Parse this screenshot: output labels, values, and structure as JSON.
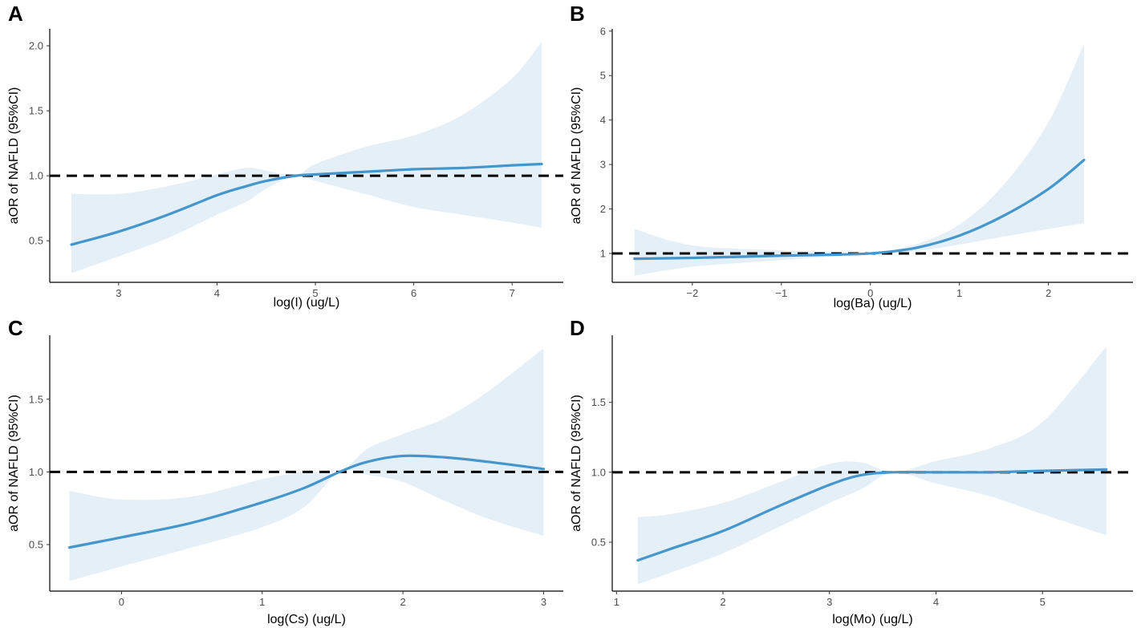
{
  "chart_data": [
    {
      "panel": "A",
      "type": "line",
      "xlabel": "log(I) (ug/L)",
      "ylabel": "aOR of NAFLD (95%CI)",
      "xlim": [
        2.3,
        7.52
      ],
      "ylim": [
        0.18,
        2.13
      ],
      "xticks": [
        3,
        4,
        5,
        6,
        7
      ],
      "xtick_labels": [
        "3",
        "4",
        "5",
        "6",
        "7"
      ],
      "yticks": [
        0.5,
        1.0,
        1.5,
        2.0
      ],
      "ytick_labels": [
        "0.5",
        "1.0",
        "1.5",
        "2.0"
      ],
      "reference_line": 1.0,
      "x": [
        2.52,
        3.0,
        3.5,
        4.0,
        4.3,
        4.5,
        4.8,
        5.0,
        5.5,
        6.0,
        6.5,
        7.0,
        7.3
      ],
      "y": [
        0.47,
        0.57,
        0.7,
        0.85,
        0.92,
        0.96,
        1.0,
        1.01,
        1.03,
        1.05,
        1.06,
        1.08,
        1.09
      ],
      "lower": [
        0.25,
        0.38,
        0.52,
        0.7,
        0.8,
        0.9,
        1.0,
        0.96,
        0.86,
        0.76,
        0.7,
        0.64,
        0.6
      ],
      "upper": [
        0.86,
        0.86,
        0.92,
        1.01,
        1.06,
        1.04,
        1.0,
        1.09,
        1.22,
        1.31,
        1.47,
        1.75,
        2.03
      ]
    },
    {
      "panel": "B",
      "type": "line",
      "xlabel": "log(Ba) (ug/L)",
      "ylabel": "aOR of NAFLD (95%CI)",
      "xlim": [
        -2.9,
        2.95
      ],
      "ylim": [
        0.35,
        6.05
      ],
      "xticks": [
        -2,
        -1,
        0,
        1,
        2
      ],
      "xtick_labels": [
        "−2",
        "−1",
        "0",
        "1",
        "2"
      ],
      "yticks": [
        1,
        2,
        3,
        4,
        5,
        6
      ],
      "ytick_labels": [
        "1",
        "2",
        "3",
        "4",
        "5",
        "6"
      ],
      "reference_line": 1.0,
      "x": [
        -2.65,
        -2.0,
        -1.0,
        -0.5,
        0.0,
        0.5,
        1.0,
        1.5,
        2.0,
        2.4
      ],
      "y": [
        0.88,
        0.9,
        0.95,
        0.97,
        1.0,
        1.12,
        1.4,
        1.85,
        2.45,
        3.1
      ],
      "lower": [
        0.5,
        0.7,
        0.85,
        0.92,
        1.0,
        1.05,
        1.2,
        1.38,
        1.55,
        1.68
      ],
      "upper": [
        1.55,
        1.18,
        1.07,
        1.03,
        1.0,
        1.2,
        1.65,
        2.55,
        3.95,
        5.72
      ]
    },
    {
      "panel": "C",
      "type": "line",
      "xlabel": "log(Cs) (ug/L)",
      "ylabel": "aOR of NAFLD (95%CI)",
      "xlim": [
        -0.51,
        3.14
      ],
      "ylim": [
        0.18,
        1.94
      ],
      "xticks": [
        0,
        1,
        2,
        3
      ],
      "xtick_labels": [
        "0",
        "1",
        "2",
        "3"
      ],
      "yticks": [
        0.5,
        1.0,
        1.5
      ],
      "ytick_labels": [
        "0.5",
        "1.0",
        "1.5"
      ],
      "reference_line": 1.0,
      "x": [
        -0.37,
        0.0,
        0.5,
        1.0,
        1.3,
        1.55,
        1.75,
        2.0,
        2.3,
        2.6,
        3.0
      ],
      "y": [
        0.48,
        0.55,
        0.65,
        0.79,
        0.89,
        1.0,
        1.07,
        1.11,
        1.1,
        1.07,
        1.02
      ],
      "lower": [
        0.25,
        0.35,
        0.48,
        0.62,
        0.76,
        1.0,
        0.98,
        0.93,
        0.8,
        0.68,
        0.56
      ],
      "upper": [
        0.87,
        0.81,
        0.83,
        0.95,
        1.0,
        1.0,
        1.16,
        1.26,
        1.37,
        1.55,
        1.85
      ]
    },
    {
      "panel": "D",
      "type": "line",
      "xlabel": "log(Mo) (ug/L)",
      "ylabel": "aOR of NAFLD (95%CI)",
      "xlim": [
        0.96,
        5.85
      ],
      "ylim": [
        0.15,
        1.98
      ],
      "xticks": [
        1,
        2,
        3,
        4,
        5
      ],
      "xtick_labels": [
        "1",
        "2",
        "3",
        "4",
        "5"
      ],
      "yticks": [
        0.5,
        1.0,
        1.5
      ],
      "ytick_labels": [
        "0.5",
        "1.0",
        "1.5"
      ],
      "reference_line": 1.0,
      "x": [
        1.2,
        1.5,
        2.0,
        2.5,
        3.0,
        3.3,
        3.6,
        4.0,
        4.5,
        5.0,
        5.6
      ],
      "y": [
        0.37,
        0.45,
        0.58,
        0.75,
        0.91,
        0.98,
        1.0,
        1.0,
        1.0,
        1.01,
        1.02
      ],
      "lower": [
        0.2,
        0.28,
        0.42,
        0.6,
        0.78,
        0.88,
        1.0,
        0.92,
        0.83,
        0.7,
        0.55
      ],
      "upper": [
        0.68,
        0.7,
        0.78,
        0.92,
        1.06,
        1.07,
        1.0,
        1.08,
        1.17,
        1.36,
        1.9
      ]
    }
  ]
}
